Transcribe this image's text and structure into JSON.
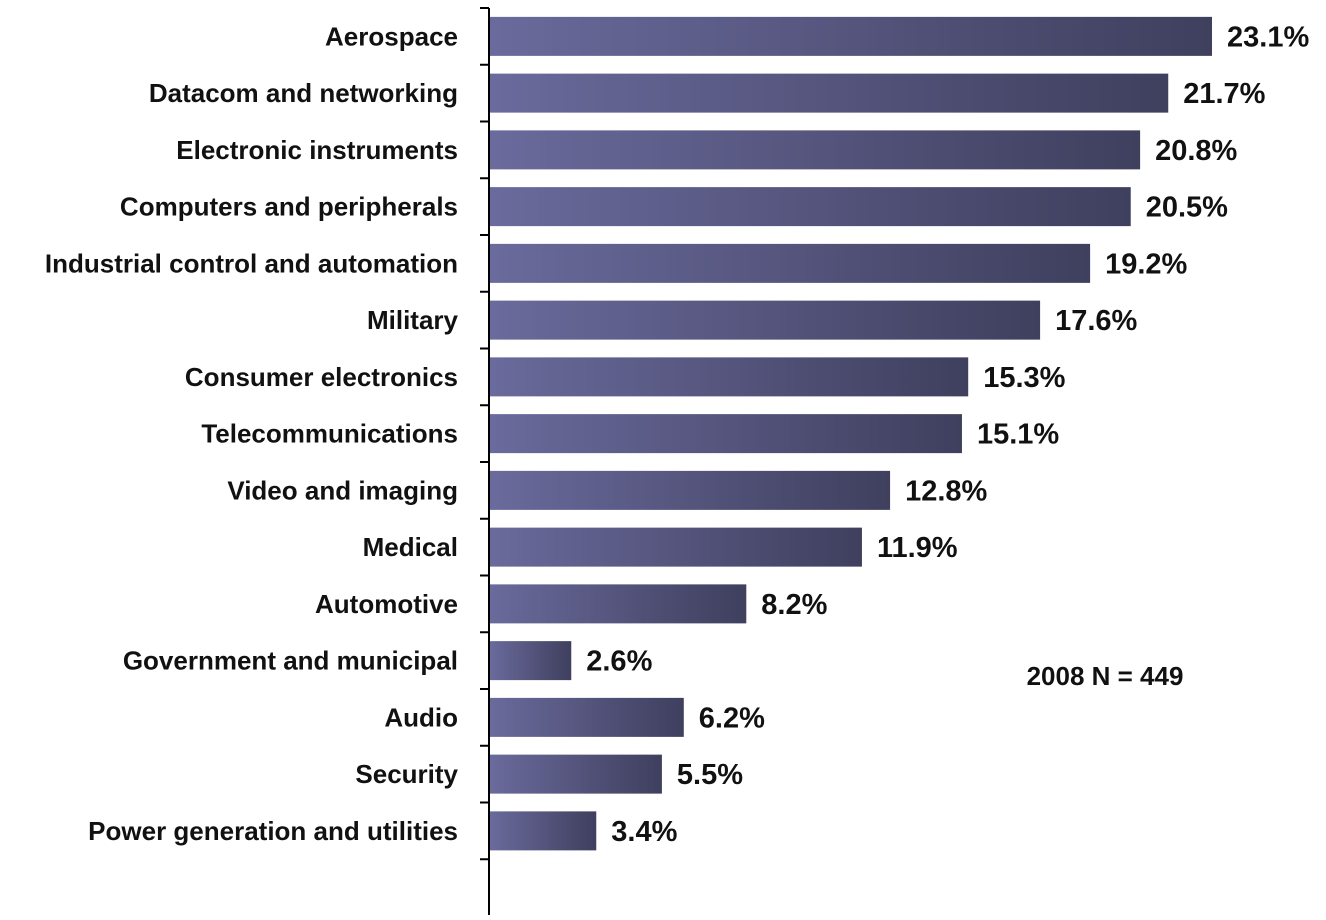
{
  "chart_data": {
    "type": "bar",
    "orientation": "horizontal",
    "categories": [
      "Aerospace",
      "Datacom and networking",
      "Electronic instruments",
      "Computers and peripherals",
      "Industrial control and automation",
      "Military",
      "Consumer electronics",
      "Telecommunications",
      "Video and imaging",
      "Medical",
      "Automotive",
      "Government and municipal",
      "Audio",
      "Security",
      "Power generation and utilities"
    ],
    "values": [
      23.1,
      21.7,
      20.8,
      20.5,
      19.2,
      17.6,
      15.3,
      15.1,
      12.8,
      11.9,
      8.2,
      2.6,
      6.2,
      5.5,
      3.4
    ],
    "value_labels": [
      "23.1%",
      "21.7%",
      "20.8%",
      "20.5%",
      "19.2%",
      "17.6%",
      "15.3%",
      "15.1%",
      "12.8%",
      "11.9%",
      "8.2%",
      "2.6%",
      "6.2%",
      "5.5%",
      "3.4%"
    ],
    "xlim": [
      0,
      23.1
    ],
    "grid": false,
    "annotation": "2008 N = 449",
    "colors": {
      "bar_light": "#6a6a9c",
      "bar_dark": "#3f3f5e",
      "axis": "#000000",
      "text": "#111111"
    }
  }
}
